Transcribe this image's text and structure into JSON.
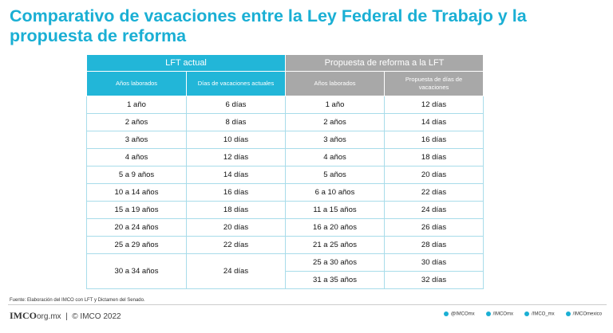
{
  "header": {
    "title": "Comparativo de vacaciones entre la Ley Federal de Trabajo y la propuesta de reforma"
  },
  "table": {
    "groups": [
      "LFT actual",
      "Propuesta de reforma a la LFT"
    ],
    "columns": [
      "Años laborados",
      "Días de vacaciones actuales",
      "Años laborados",
      "Propuesta de días de vacaciones"
    ],
    "lft_rows": [
      [
        "1 año",
        "6 días"
      ],
      [
        "2 años",
        "8 días"
      ],
      [
        "3 años",
        "10 días"
      ],
      [
        "4 años",
        "12 días"
      ],
      [
        "5 a 9 años",
        "14 días"
      ],
      [
        "10 a 14 años",
        "16 días"
      ],
      [
        "15 a 19 años",
        "18 días"
      ],
      [
        "20 a 24 años",
        "20 días"
      ],
      [
        "25 a 29 años",
        "22 días"
      ],
      [
        "30 a 34 años",
        "24 días"
      ]
    ],
    "propuesta_rows": [
      [
        "1 año",
        "12 días"
      ],
      [
        "2 años",
        "14 días"
      ],
      [
        "3 años",
        "16 días"
      ],
      [
        "4 años",
        "18 días"
      ],
      [
        "5 años",
        "20 días"
      ],
      [
        "6 a 10 años",
        "22 días"
      ],
      [
        "11 a 15 años",
        "24 días"
      ],
      [
        "16 a 20 años",
        "26 días"
      ],
      [
        "21 a 25 años",
        "28 días"
      ],
      [
        "25 a 30 años",
        "30 días"
      ],
      [
        "31 a 35 años",
        "32 días"
      ]
    ]
  },
  "footer": {
    "source": "Fuente: Elaboración del IMCO con LFT y Dictamen del Senado.",
    "logo": "IMCO",
    "domain": "org.mx",
    "copyright": "© IMCO 2022",
    "social": [
      "@IMCOmx",
      "/IMCOmx",
      "/IMCO_mx",
      "/IMCOmexico"
    ]
  }
}
